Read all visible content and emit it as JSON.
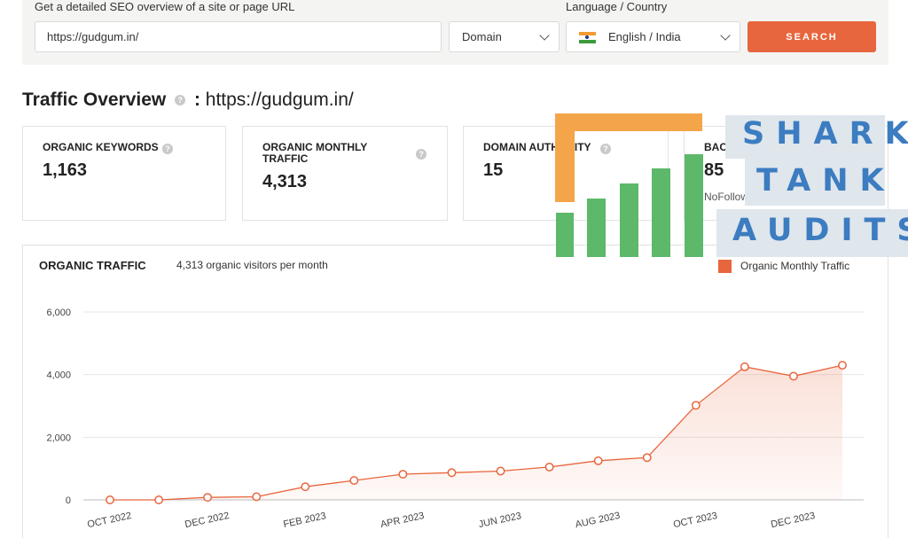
{
  "search": {
    "url_label": "Get a detailed SEO overview of a site or page URL",
    "url_value": "https://gudgum.in/",
    "scope_value": "Domain",
    "lang_label": "Language / Country",
    "lang_value": "English / India",
    "button_label": "SEARCH"
  },
  "overview": {
    "title": "Traffic Overview",
    "separator": ":",
    "url": "https://gudgum.in/",
    "help_glyph": "?"
  },
  "cards": {
    "keywords": {
      "label": "ORGANIC KEYWORDS",
      "value": "1,163"
    },
    "traffic": {
      "label": "ORGANIC MONTHLY TRAFFIC",
      "value": "4,313"
    },
    "authority": {
      "label": "DOMAIN AUTHORITY",
      "value": "15"
    },
    "backlinks": {
      "label": "BACKLINKS",
      "value": "85",
      "sub": "NoFollow: 3"
    }
  },
  "chart": {
    "title": "ORGANIC TRAFFIC",
    "subtitle": "4,313 organic visitors per month",
    "legend": "Organic Monthly Traffic"
  },
  "chart_data": {
    "type": "area",
    "series": [
      {
        "name": "Organic Monthly Traffic",
        "values": [
          0,
          0,
          80,
          100,
          420,
          620,
          820,
          870,
          920,
          1050,
          1250,
          1350,
          3020,
          4250,
          3950,
          4300
        ]
      }
    ],
    "x_labels": [
      "OCT 2022",
      "DEC 2022",
      "FEB 2023",
      "APR 2023",
      "JUN 2023",
      "AUG 2023",
      "OCT 2023",
      "DEC 2023"
    ],
    "yticks": [
      "0",
      "2,000",
      "4,000",
      "6,000"
    ],
    "ylim": [
      0,
      6000
    ],
    "color": "#e8663d",
    "grid": true,
    "legend_position": "top-right"
  },
  "logo": {
    "line1": "SHARK",
    "line2": "TANK",
    "line3": "AUDITS",
    "text_color": "#3c7cc0",
    "bar_color": "#5db86a",
    "bracket_color": "#f4a54a"
  }
}
